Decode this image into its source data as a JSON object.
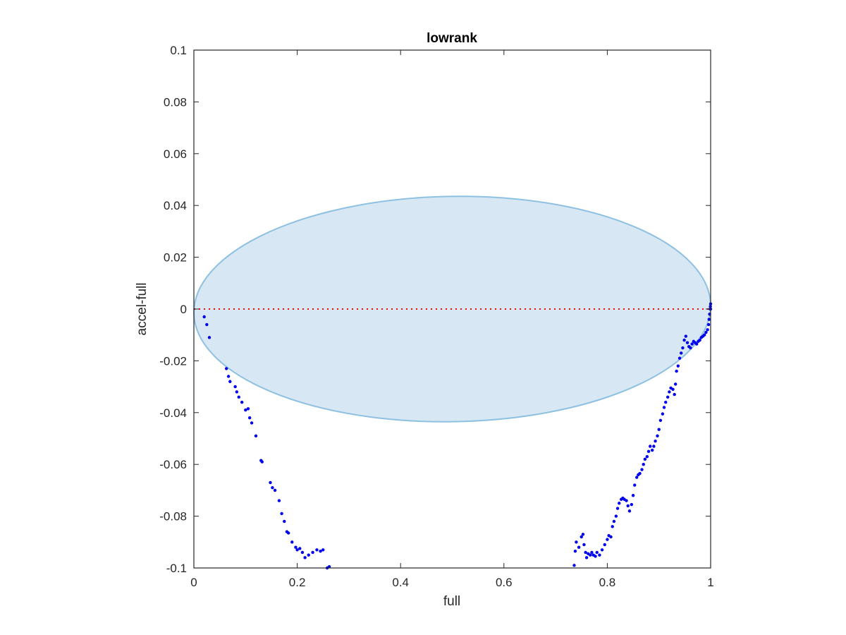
{
  "chart_data": {
    "type": "scatter",
    "title": "lowrank",
    "xlabel": "full",
    "ylabel": "accel-full",
    "xlim": [
      0,
      1
    ],
    "ylim": [
      -0.1,
      0.1
    ],
    "x_ticks": [
      0,
      0.2,
      0.4,
      0.6,
      0.8,
      1
    ],
    "x_tick_labels": [
      "0",
      "0.2",
      "0.4",
      "0.6",
      "0.8",
      "1"
    ],
    "y_ticks": [
      -0.1,
      -0.08,
      -0.06,
      -0.04,
      -0.02,
      0,
      0.02,
      0.04,
      0.06,
      0.08,
      0.1
    ],
    "y_tick_labels": [
      "-0.1",
      "-0.08",
      "-0.06",
      "-0.04",
      "-0.02",
      "0",
      "0.02",
      "0.04",
      "0.06",
      "0.08",
      "0.1"
    ],
    "grid": false,
    "box": true,
    "reference_line": {
      "y": 0,
      "style": "dotted",
      "color": "#ff0000"
    },
    "ellipse": {
      "cx": 0.5,
      "cy": 0.0,
      "rx": 0.5,
      "ry": 0.0435,
      "tilt_dy": 0.0016,
      "fill": "#d7e8f4",
      "stroke": "#8ec1e1"
    },
    "point_color": "#0000ee",
    "series": [
      {
        "name": "",
        "points": [
          [
            0.02,
            -0.003
          ],
          [
            0.025,
            -0.006
          ],
          [
            0.03,
            -0.011
          ],
          [
            0.063,
            -0.023
          ],
          [
            0.067,
            -0.026
          ],
          [
            0.07,
            -0.028
          ],
          [
            0.08,
            -0.03
          ],
          [
            0.083,
            -0.032
          ],
          [
            0.087,
            -0.034
          ],
          [
            0.093,
            -0.036
          ],
          [
            0.1,
            -0.039
          ],
          [
            0.105,
            -0.0385
          ],
          [
            0.108,
            -0.042
          ],
          [
            0.112,
            -0.044
          ],
          [
            0.12,
            -0.049
          ],
          [
            0.13,
            -0.0585
          ],
          [
            0.132,
            -0.059
          ],
          [
            0.148,
            -0.067
          ],
          [
            0.152,
            -0.069
          ],
          [
            0.157,
            -0.07
          ],
          [
            0.165,
            -0.074
          ],
          [
            0.17,
            -0.079
          ],
          [
            0.175,
            -0.082
          ],
          [
            0.18,
            -0.086
          ],
          [
            0.183,
            -0.0865
          ],
          [
            0.19,
            -0.09
          ],
          [
            0.197,
            -0.092
          ],
          [
            0.2,
            -0.093
          ],
          [
            0.205,
            -0.0925
          ],
          [
            0.21,
            -0.094
          ],
          [
            0.215,
            -0.096
          ],
          [
            0.222,
            -0.095
          ],
          [
            0.23,
            -0.094
          ],
          [
            0.238,
            -0.093
          ],
          [
            0.245,
            -0.0935
          ],
          [
            0.25,
            -0.093
          ],
          [
            0.258,
            -0.1
          ],
          [
            0.262,
            -0.0995
          ],
          [
            0.736,
            -0.099
          ],
          [
            0.738,
            -0.0935
          ],
          [
            0.74,
            -0.09
          ],
          [
            0.745,
            -0.092
          ],
          [
            0.75,
            -0.088
          ],
          [
            0.753,
            -0.087
          ],
          [
            0.755,
            -0.091
          ],
          [
            0.758,
            -0.094
          ],
          [
            0.76,
            -0.096
          ],
          [
            0.763,
            -0.0945
          ],
          [
            0.767,
            -0.095
          ],
          [
            0.77,
            -0.094
          ],
          [
            0.773,
            -0.095
          ],
          [
            0.777,
            -0.0955
          ],
          [
            0.78,
            -0.094
          ],
          [
            0.785,
            -0.095
          ],
          [
            0.79,
            -0.093
          ],
          [
            0.795,
            -0.091
          ],
          [
            0.8,
            -0.089
          ],
          [
            0.803,
            -0.0875
          ],
          [
            0.807,
            -0.088
          ],
          [
            0.81,
            -0.084
          ],
          [
            0.813,
            -0.082
          ],
          [
            0.817,
            -0.08
          ],
          [
            0.82,
            -0.077
          ],
          [
            0.823,
            -0.075
          ],
          [
            0.827,
            -0.0735
          ],
          [
            0.83,
            -0.073
          ],
          [
            0.833,
            -0.0735
          ],
          [
            0.837,
            -0.074
          ],
          [
            0.84,
            -0.076
          ],
          [
            0.843,
            -0.078
          ],
          [
            0.847,
            -0.0755
          ],
          [
            0.85,
            -0.072
          ],
          [
            0.853,
            -0.068
          ],
          [
            0.857,
            -0.065
          ],
          [
            0.86,
            -0.064
          ],
          [
            0.863,
            -0.0635
          ],
          [
            0.867,
            -0.062
          ],
          [
            0.87,
            -0.06
          ],
          [
            0.873,
            -0.058
          ],
          [
            0.877,
            -0.057
          ],
          [
            0.88,
            -0.055
          ],
          [
            0.883,
            -0.053
          ],
          [
            0.887,
            -0.0545
          ],
          [
            0.89,
            -0.053
          ],
          [
            0.893,
            -0.051
          ],
          [
            0.897,
            -0.049
          ],
          [
            0.9,
            -0.0465
          ],
          [
            0.903,
            -0.043
          ],
          [
            0.907,
            -0.0405
          ],
          [
            0.91,
            -0.038
          ],
          [
            0.913,
            -0.036
          ],
          [
            0.917,
            -0.034
          ],
          [
            0.92,
            -0.032
          ],
          [
            0.923,
            -0.0305
          ],
          [
            0.927,
            -0.031
          ],
          [
            0.93,
            -0.033
          ],
          [
            0.932,
            -0.029
          ],
          [
            0.934,
            -0.024
          ],
          [
            0.937,
            -0.022
          ],
          [
            0.94,
            -0.019
          ],
          [
            0.943,
            -0.017
          ],
          [
            0.946,
            -0.015
          ],
          [
            0.949,
            -0.012
          ],
          [
            0.952,
            -0.0105
          ],
          [
            0.955,
            -0.013
          ],
          [
            0.958,
            -0.0145
          ],
          [
            0.961,
            -0.015
          ],
          [
            0.964,
            -0.0135
          ],
          [
            0.967,
            -0.0125
          ],
          [
            0.97,
            -0.013
          ],
          [
            0.973,
            -0.0135
          ],
          [
            0.976,
            -0.0125
          ],
          [
            0.979,
            -0.012
          ],
          [
            0.982,
            -0.011
          ],
          [
            0.985,
            -0.0105
          ],
          [
            0.988,
            -0.01
          ],
          [
            0.991,
            -0.009
          ],
          [
            0.994,
            -0.008
          ],
          [
            0.996,
            -0.006
          ],
          [
            0.997,
            -0.004
          ],
          [
            0.998,
            -0.002
          ],
          [
            0.999,
            0.0
          ],
          [
            0.9995,
            0.001
          ],
          [
            1.0,
            0.002
          ],
          [
            1.0,
            0.0
          ]
        ]
      }
    ]
  }
}
